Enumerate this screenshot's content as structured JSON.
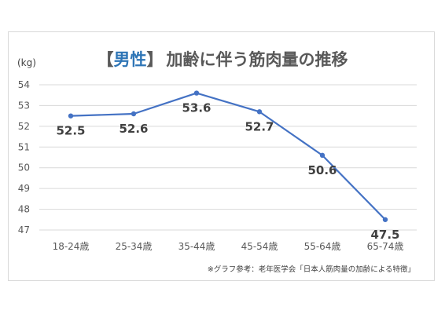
{
  "chart_data": {
    "type": "line",
    "title_open": "【",
    "title_accent": "男性",
    "title_close": "】",
    "title_rest": "加齢に伴う筋肉量の推移",
    "ylabel": "(kg)",
    "xlabel": "",
    "ylim": [
      47,
      54
    ],
    "yticks": [
      47,
      48,
      49,
      50,
      51,
      52,
      53,
      54
    ],
    "categories": [
      "18-24歳",
      "25-34歳",
      "35-44歳",
      "45-54歳",
      "55-64歳",
      "65-74歳"
    ],
    "series": [
      {
        "values": [
          52.5,
          52.6,
          53.6,
          52.7,
          50.6,
          47.5
        ],
        "labels": [
          "52.5",
          "52.6",
          "53.6",
          "52.7",
          "50.6",
          "47.5"
        ],
        "color": "#4472c4"
      }
    ],
    "grid": true,
    "legend": "none",
    "source": "※グラフ参考：老年医学会「日本人筋肉量の加齢による特徴」",
    "accent_color": "#2e75b6"
  }
}
